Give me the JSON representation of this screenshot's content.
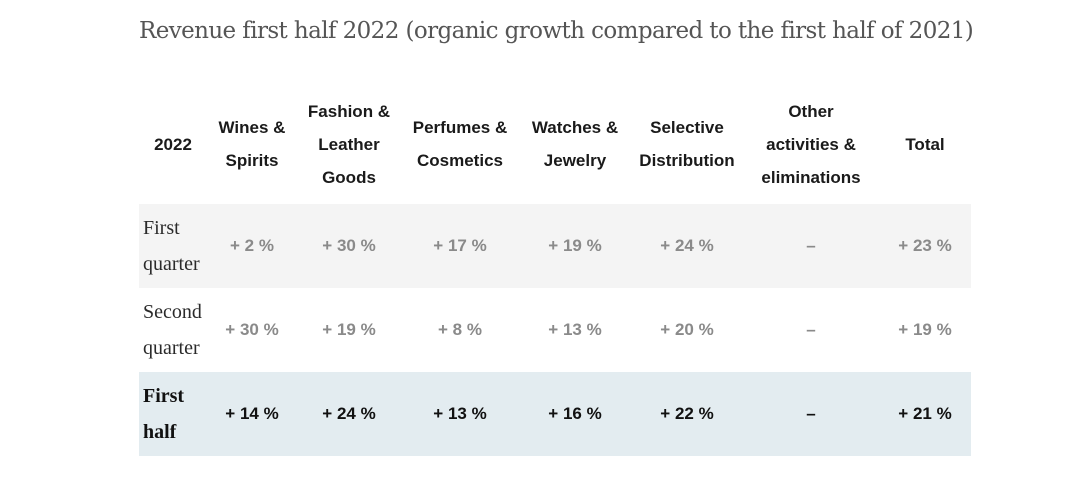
{
  "title": "Revenue first half 2022 (organic growth compared to the first half of  2021)",
  "table": {
    "headers": [
      [
        "2022"
      ],
      [
        "Wines &",
        "Spirits"
      ],
      [
        "Fashion &",
        "Leather",
        "Goods"
      ],
      [
        "Perfumes &",
        "Cosmetics"
      ],
      [
        "Watches &",
        "Jewelry"
      ],
      [
        "Selective",
        "Distribution"
      ],
      [
        "Other",
        "activities &",
        "eliminations"
      ],
      [
        "Total"
      ]
    ],
    "rows": [
      {
        "label": [
          "First",
          "quarter"
        ],
        "values": [
          "+ 2 %",
          "+ 30 %",
          "+ 17 %",
          "+ 19 %",
          "+ 24 %",
          "–",
          "+ 23 %"
        ]
      },
      {
        "label": [
          "Second",
          "quarter"
        ],
        "values": [
          "+ 30 %",
          "+ 19 %",
          "+ 8 %",
          "+ 13 %",
          "+ 20 %",
          "–",
          "+ 19 %"
        ]
      },
      {
        "label": [
          "First",
          "half"
        ],
        "values": [
          "+ 14 %",
          "+ 24 %",
          "+ 13 %",
          "+ 16 %",
          "+ 22 %",
          "–",
          "+ 21 %"
        ]
      }
    ]
  }
}
